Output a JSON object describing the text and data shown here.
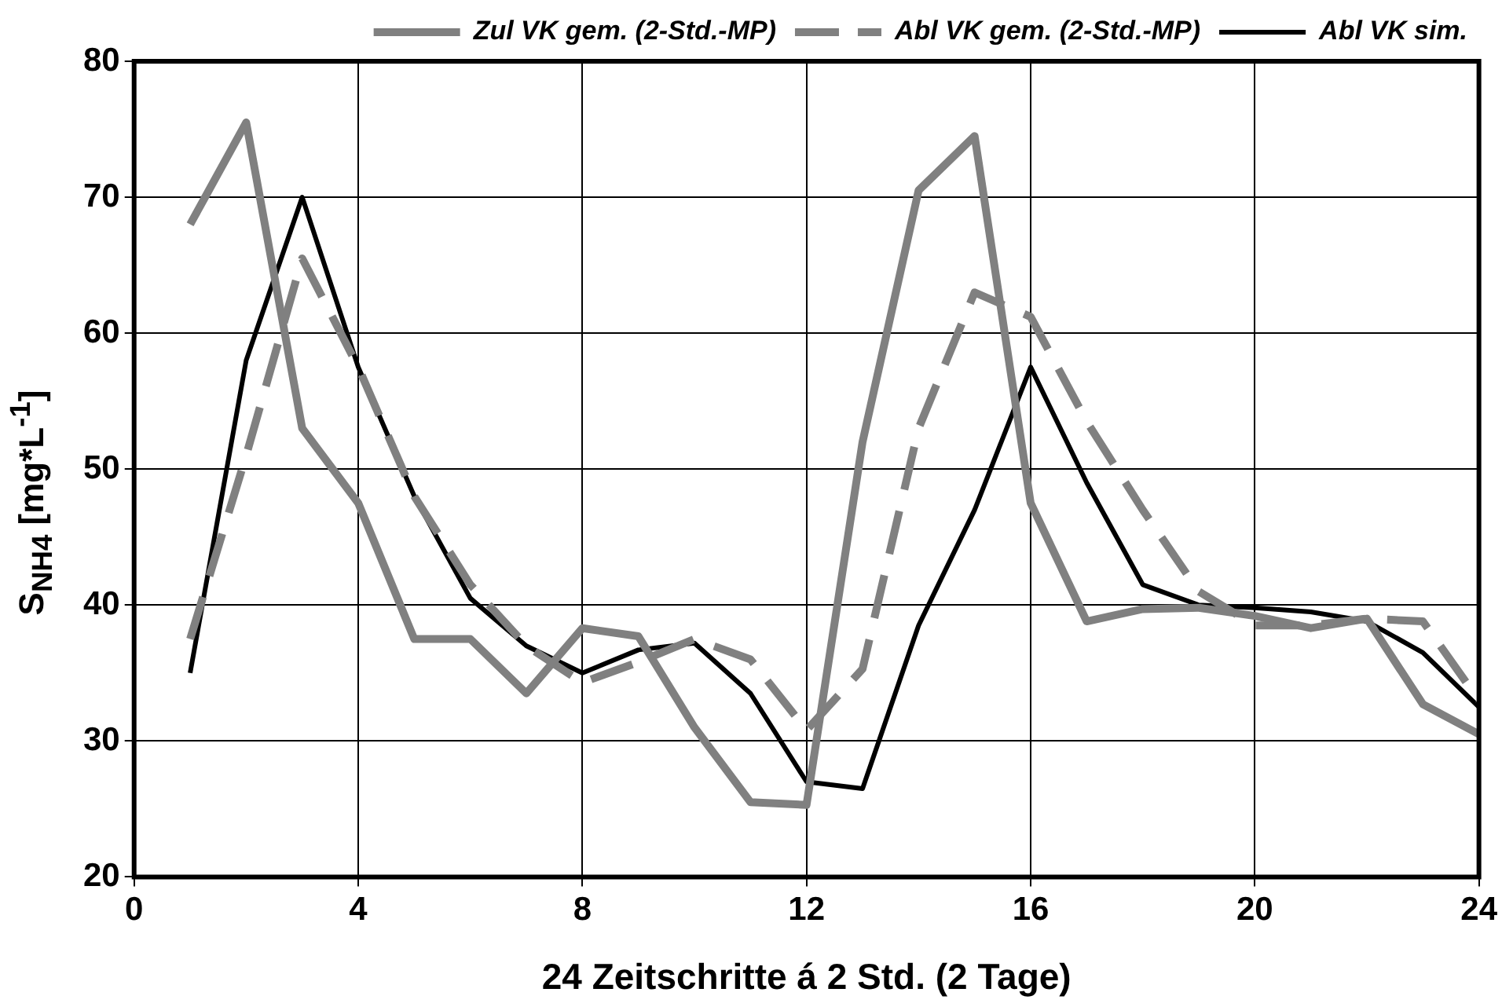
{
  "chart_data": {
    "type": "line",
    "xlabel": "24 Zeitschritte á 2 Std. (2 Tage)",
    "ylabel": "S$_{NH4}$    [mg*L$^{-1}$]",
    "x": [
      1,
      2,
      3,
      4,
      5,
      6,
      7,
      8,
      9,
      10,
      11,
      12,
      13,
      14,
      15,
      16,
      17,
      18,
      19,
      20,
      21,
      22,
      23,
      24
    ],
    "series": [
      {
        "name": "Zul VK gem. (2-Std.-MP)",
        "color": "#808080",
        "line_style": "solid",
        "values": [
          68,
          75.5,
          53,
          47.5,
          37.5,
          37.5,
          33.5,
          38.3,
          37.7,
          31,
          25.5,
          25.3,
          52,
          70.5,
          74.5,
          47.5,
          38.8,
          39.7,
          39.8,
          39.2,
          38.3,
          39,
          32.7,
          30.5
        ]
      },
      {
        "name": "Abl VK gem. (2-Std.-MP)",
        "color": "#808080",
        "line_style": "dashed",
        "values": [
          37.5,
          51,
          65.5,
          57.5,
          48,
          41.5,
          37,
          34.3,
          35.8,
          37.5,
          36,
          30.8,
          35.3,
          53,
          63,
          61.2,
          53.5,
          47,
          41,
          38.5,
          38.5,
          39,
          38.8,
          33
        ]
      },
      {
        "name": "Abl VK sim.",
        "color": "#000000",
        "line_style": "solid",
        "values": [
          35,
          58,
          70,
          57.5,
          48,
          40.5,
          37,
          35,
          36.7,
          37.2,
          33.5,
          27,
          26.5,
          38.5,
          47,
          57.5,
          49,
          41.5,
          40,
          39.8,
          39.5,
          38.8,
          36.5,
          32.5
        ]
      }
    ],
    "xlim": [
      0,
      24
    ],
    "xticks": [
      0,
      4,
      8,
      12,
      16,
      20,
      24
    ],
    "ylim": [
      20,
      80
    ],
    "yticks": [
      20,
      30,
      40,
      50,
      60,
      70,
      80
    ],
    "grid": true,
    "legend": "top",
    "marker": "none"
  }
}
